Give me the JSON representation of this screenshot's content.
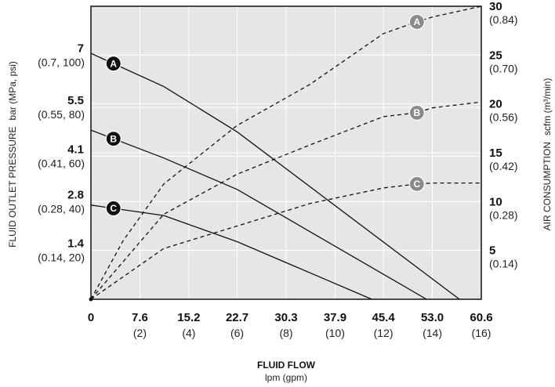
{
  "chart_data": {
    "type": "line",
    "xlabel": "FLUID FLOW",
    "xlabel_units": "lpm (gpm)",
    "ylabel_left": "FLUID OUTLET PRESSURE",
    "ylabel_left_units": "bar (MPa, psi)",
    "ylabel_right": "AIR CONSUMPTION",
    "ylabel_right_units": "scfm (m³/min)",
    "xlim": [
      0,
      60.6
    ],
    "ylim_left": [
      0,
      8.4
    ],
    "ylim_right": [
      0,
      30
    ],
    "x_ticks": [
      {
        "value": 0,
        "label": "0",
        "sub": ""
      },
      {
        "value": 7.6,
        "label": "7.6",
        "sub": "(2)"
      },
      {
        "value": 15.2,
        "label": "15.2",
        "sub": "(4)"
      },
      {
        "value": 22.7,
        "label": "22.7",
        "sub": "(6)"
      },
      {
        "value": 30.3,
        "label": "30.3",
        "sub": "(8)"
      },
      {
        "value": 37.9,
        "label": "37.9",
        "sub": "(10)"
      },
      {
        "value": 45.4,
        "label": "45.4",
        "sub": "(12)"
      },
      {
        "value": 53.0,
        "label": "53.0",
        "sub": "(14)"
      },
      {
        "value": 60.6,
        "label": "60.6",
        "sub": "(16)"
      }
    ],
    "y_ticks_left": [
      {
        "value": 7,
        "label": "7",
        "sub": "(0.7, 100)"
      },
      {
        "value": 5.5,
        "label": "5.5",
        "sub": "(0.55, 80)"
      },
      {
        "value": 4.1,
        "label": "4.1",
        "sub": "(0.41, 60)"
      },
      {
        "value": 2.8,
        "label": "2.8",
        "sub": "(0.28, 40)"
      },
      {
        "value": 1.4,
        "label": "1.4",
        "sub": "(0.14, 20)"
      }
    ],
    "y_ticks_right": [
      {
        "value": 30,
        "label": "30",
        "sub": "(0.84)"
      },
      {
        "value": 25,
        "label": "25",
        "sub": "(0.70)"
      },
      {
        "value": 20,
        "label": "20",
        "sub": "(0.56)"
      },
      {
        "value": 15,
        "label": "15",
        "sub": "(0.42)"
      },
      {
        "value": 10,
        "label": "10",
        "sub": "(0.28)"
      },
      {
        "value": 5,
        "label": "5",
        "sub": "(0.14)"
      }
    ],
    "grid": true,
    "background": "#e6e6e6",
    "series": [
      {
        "name": "A",
        "kind": "pressure",
        "axis": "left",
        "style": "solid",
        "marker_x": 3.5,
        "points": [
          [
            0,
            7.05
          ],
          [
            11.3,
            6.1
          ],
          [
            22.7,
            4.8
          ],
          [
            57.2,
            0.0
          ]
        ]
      },
      {
        "name": "B",
        "kind": "pressure",
        "axis": "left",
        "style": "solid",
        "marker_x": 3.5,
        "points": [
          [
            0,
            4.85
          ],
          [
            11.3,
            4.05
          ],
          [
            22.7,
            3.15
          ],
          [
            52.1,
            0.0
          ]
        ]
      },
      {
        "name": "C",
        "kind": "pressure",
        "axis": "left",
        "style": "solid",
        "marker_x": 3.5,
        "points": [
          [
            0,
            2.7
          ],
          [
            11.3,
            2.4
          ],
          [
            22.7,
            1.65
          ],
          [
            43.6,
            0.0
          ]
        ]
      },
      {
        "name": "A",
        "kind": "air",
        "axis": "right",
        "style": "dashed",
        "marker_x": 50.6,
        "points": [
          [
            0,
            0
          ],
          [
            5,
            6
          ],
          [
            11.3,
            11.8
          ],
          [
            22.7,
            17.8
          ],
          [
            34,
            22
          ],
          [
            45.4,
            27.2
          ],
          [
            50.6,
            28.4
          ],
          [
            53,
            28.9
          ],
          [
            60.6,
            30.0
          ]
        ]
      },
      {
        "name": "B",
        "kind": "air",
        "axis": "right",
        "style": "dashed",
        "marker_x": 50.6,
        "points": [
          [
            0,
            0
          ],
          [
            11.3,
            8.7
          ],
          [
            22.7,
            12.8
          ],
          [
            34,
            15.8
          ],
          [
            45.4,
            18.7
          ],
          [
            50.6,
            19.1
          ],
          [
            53,
            19.6
          ],
          [
            60.6,
            20.2
          ]
        ]
      },
      {
        "name": "C",
        "kind": "air",
        "axis": "right",
        "style": "dashed",
        "marker_x": 50.6,
        "points": [
          [
            0,
            0
          ],
          [
            11.3,
            5.2
          ],
          [
            22.7,
            7.5
          ],
          [
            34,
            9.8
          ],
          [
            45.4,
            11.4
          ],
          [
            50.6,
            11.8
          ],
          [
            53,
            11.9
          ],
          [
            60.6,
            11.9
          ]
        ]
      }
    ]
  }
}
